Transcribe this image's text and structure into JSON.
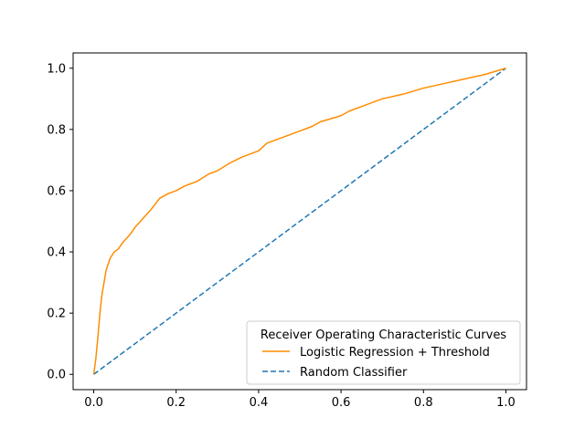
{
  "chart_data": {
    "type": "line",
    "title": "",
    "xlabel": "",
    "ylabel": "",
    "xlim": [
      -0.05,
      1.05
    ],
    "ylim": [
      -0.05,
      1.05
    ],
    "xticks": [
      0.0,
      0.2,
      0.4,
      0.6,
      0.8,
      1.0
    ],
    "xtick_labels": [
      "0.0",
      "0.2",
      "0.4",
      "0.6",
      "0.8",
      "1.0"
    ],
    "yticks": [
      0.0,
      0.2,
      0.4,
      0.6,
      0.8,
      1.0
    ],
    "ytick_labels": [
      "0.0",
      "0.2",
      "0.4",
      "0.6",
      "0.8",
      "1.0"
    ],
    "grid": false,
    "legend": {
      "title": "Receiver Operating Characteristic Curves",
      "placement": "lower-right"
    },
    "series": [
      {
        "name": "Logistic Regression + Threshold",
        "color": "#ff8c00",
        "style": "solid",
        "x": [
          0.0,
          0.005,
          0.01,
          0.015,
          0.02,
          0.025,
          0.03,
          0.035,
          0.04,
          0.05,
          0.06,
          0.07,
          0.08,
          0.09,
          0.1,
          0.12,
          0.14,
          0.16,
          0.18,
          0.2,
          0.22,
          0.25,
          0.28,
          0.3,
          0.33,
          0.36,
          0.4,
          0.42,
          0.45,
          0.5,
          0.53,
          0.55,
          0.6,
          0.62,
          0.65,
          0.7,
          0.75,
          0.8,
          0.85,
          0.9,
          0.95,
          1.0
        ],
        "y": [
          0.0,
          0.05,
          0.12,
          0.2,
          0.26,
          0.3,
          0.34,
          0.36,
          0.38,
          0.4,
          0.41,
          0.43,
          0.445,
          0.46,
          0.48,
          0.51,
          0.54,
          0.575,
          0.59,
          0.6,
          0.615,
          0.63,
          0.655,
          0.665,
          0.69,
          0.71,
          0.73,
          0.755,
          0.77,
          0.795,
          0.81,
          0.825,
          0.845,
          0.86,
          0.875,
          0.9,
          0.915,
          0.935,
          0.95,
          0.965,
          0.98,
          1.0
        ]
      },
      {
        "name": "Random Classifier",
        "color": "#1f77b4",
        "style": "dashed",
        "x": [
          0.0,
          1.0
        ],
        "y": [
          0.0,
          1.0
        ]
      }
    ]
  }
}
